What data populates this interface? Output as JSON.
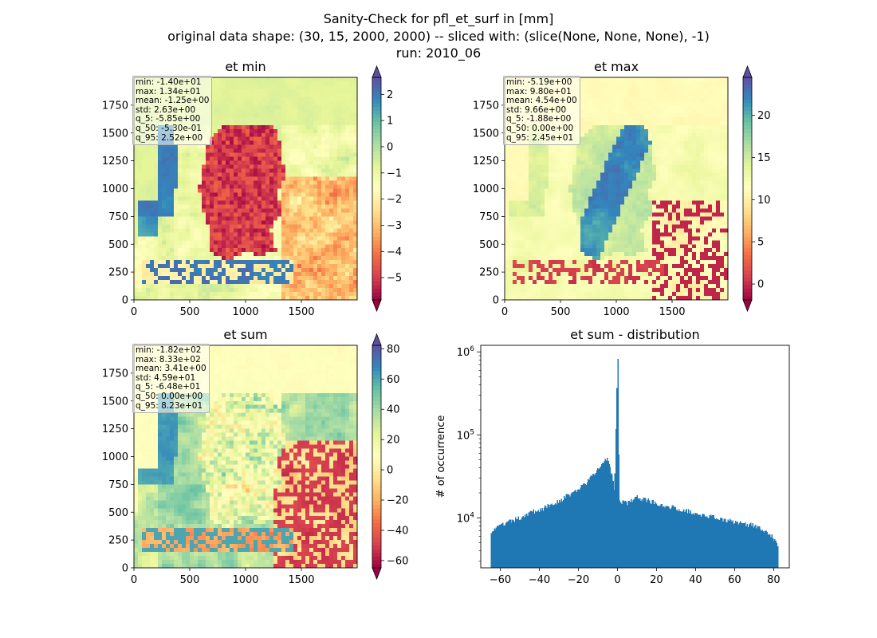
{
  "figure": {
    "title_lines": [
      "Sanity-Check for pfl_et_surf in [mm]",
      "original data shape: (30, 15, 2000, 2000) -- sliced with: (slice(None, None, None), -1)",
      "run: 2010_06"
    ]
  },
  "colors": {
    "spectral": [
      "#9e0142",
      "#d53e4f",
      "#f46d43",
      "#fdae61",
      "#fee08b",
      "#ffffbf",
      "#e6f598",
      "#abdda4",
      "#66c2a5",
      "#3288bd",
      "#5e4fa2"
    ],
    "hist_bar": "#1f77b4"
  },
  "chart_data": [
    {
      "type": "heatmap",
      "title": "et min",
      "xticks": [
        0,
        500,
        1000,
        1500
      ],
      "yticks": [
        0,
        250,
        500,
        750,
        1000,
        1250,
        1500,
        1750
      ],
      "xlim": [
        0,
        2000
      ],
      "ylim": [
        0,
        2000
      ],
      "colorbar": {
        "ticks": [
          2,
          1,
          0,
          -1,
          -2,
          -3,
          -4,
          -5
        ],
        "tick_labels": [
          "2",
          "1",
          "0",
          "−1",
          "−2",
          "−3",
          "−4",
          "−5"
        ],
        "range": [
          -5.85,
          2.65
        ],
        "extend": "both",
        "cmap": "Spectral"
      },
      "stats": [
        "min: -1.40e+01",
        "max: 1.34e+01",
        "mean: -1.25e+00",
        "std: 2.63e+00",
        "q_5: -5.85e+00",
        "q_50: -5.30e-01",
        "q_95: 2.52e+00"
      ]
    },
    {
      "type": "heatmap",
      "title": "et max",
      "xticks": [
        0,
        500,
        1000,
        1500
      ],
      "yticks": [
        0,
        250,
        500,
        750,
        1000,
        1250,
        1500,
        1750
      ],
      "xlim": [
        0,
        2000
      ],
      "ylim": [
        0,
        2000
      ],
      "colorbar": {
        "ticks": [
          20,
          15,
          10,
          5,
          0
        ],
        "tick_labels": [
          "20",
          "15",
          "10",
          "5",
          "0"
        ],
        "range": [
          -1.88,
          24.5
        ],
        "extend": "both",
        "cmap": "Spectral"
      },
      "stats": [
        "min: -5.19e+00",
        "max: 9.80e+01",
        "mean: 4.54e+00",
        "std: 9.66e+00",
        "q_5: -1.88e+00",
        "q_50: 0.00e+00",
        "q_95: 2.45e+01"
      ]
    },
    {
      "type": "heatmap",
      "title": "et sum",
      "xticks": [
        0,
        500,
        1000,
        1500
      ],
      "yticks": [
        0,
        250,
        500,
        750,
        1000,
        1250,
        1500,
        1750
      ],
      "xlim": [
        0,
        2000
      ],
      "ylim": [
        0,
        2000
      ],
      "colorbar": {
        "ticks": [
          80,
          60,
          40,
          20,
          0,
          -20,
          -40,
          -60
        ],
        "tick_labels": [
          "80",
          "60",
          "40",
          "20",
          "0",
          "−20",
          "−40",
          "−60"
        ],
        "range": [
          -64.8,
          82.3
        ],
        "extend": "both",
        "cmap": "Spectral"
      },
      "stats": [
        "min: -1.82e+02",
        "max: 8.33e+02",
        "mean: 3.41e+00",
        "std: 4.59e+01",
        "q_5: -6.48e+01",
        "q_50: 0.00e+00",
        "q_95: 8.23e+01"
      ]
    },
    {
      "type": "bar",
      "title": "et sum - distribution",
      "xlabel": "",
      "ylabel": "# of occurrence",
      "yscale": "log",
      "xlim": [
        -70,
        88
      ],
      "ylim": [
        2500,
        1200000
      ],
      "xticks": [
        -60,
        -40,
        -20,
        0,
        20,
        40,
        60,
        80
      ],
      "xtick_labels": [
        "−60",
        "−40",
        "−20",
        "0",
        "20",
        "40",
        "60",
        "80"
      ],
      "yticks": [
        10000,
        100000,
        1000000
      ],
      "ytick_labels": [
        {
          "base": "10",
          "exp": "4"
        },
        {
          "base": "10",
          "exp": "5"
        },
        {
          "base": "10",
          "exp": "6"
        }
      ],
      "bin_range": [
        -64.8,
        82.3
      ],
      "bins_control": [
        [
          -64.8,
          7000
        ],
        [
          -60,
          8000
        ],
        [
          -55,
          9000
        ],
        [
          -50,
          10000
        ],
        [
          -45,
          11500
        ],
        [
          -40,
          12500
        ],
        [
          -35,
          14000
        ],
        [
          -30,
          16000
        ],
        [
          -25,
          19000
        ],
        [
          -20,
          22000
        ],
        [
          -15,
          28000
        ],
        [
          -10,
          38000
        ],
        [
          -7,
          48000
        ],
        [
          -5,
          55000
        ],
        [
          -3,
          35000
        ],
        [
          -1.5,
          20000
        ],
        [
          0,
          820000
        ],
        [
          1,
          16000
        ],
        [
          5,
          15000
        ],
        [
          10,
          17500
        ],
        [
          15,
          16500
        ],
        [
          20,
          15000
        ],
        [
          30,
          13000
        ],
        [
          40,
          11500
        ],
        [
          50,
          10000
        ],
        [
          60,
          9000
        ],
        [
          70,
          8000
        ],
        [
          78,
          6500
        ],
        [
          82.3,
          4500
        ]
      ]
    }
  ]
}
